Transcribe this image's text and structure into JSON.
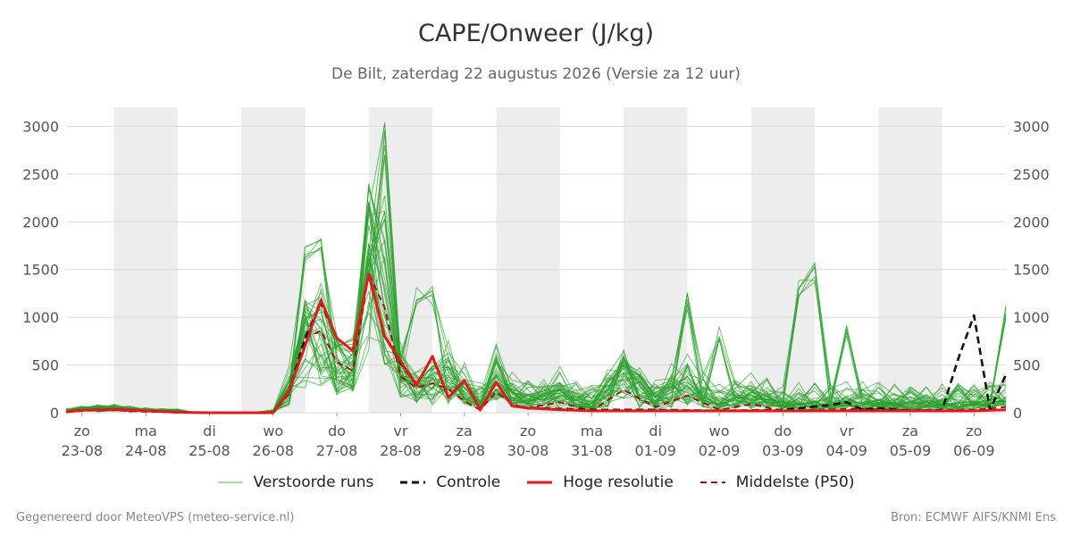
{
  "header": {
    "title": "CAPE/Onweer (J/kg)",
    "subtitle": "De Bilt, zaterdag 22 augustus 2026 (Versie za 12 uur)"
  },
  "footer": {
    "left": "Gegenereerd door MeteoVPS (meteo-service.nl)",
    "right": "Bron: ECMWF AIFS/KNMI Ens"
  },
  "legend": [
    {
      "label": "Verstoorde runs",
      "color": "#2ca02c",
      "style": "thin-solid"
    },
    {
      "label": "Controle",
      "color": "#111111",
      "style": "dashed"
    },
    {
      "label": "Hoge resolutie",
      "color": "#e31a1c",
      "style": "solid"
    },
    {
      "label": "Middelste (P50)",
      "color": "#a50f15",
      "style": "dashed"
    }
  ],
  "chart_data": {
    "type": "line",
    "title": "CAPE/Onweer (J/kg)",
    "y_unit": "J/kg",
    "ylim": [
      0,
      3200
    ],
    "yticks": [
      0,
      500,
      1000,
      1500,
      2000,
      2500,
      3000
    ],
    "xlim": [
      -0.25,
      14.5
    ],
    "x_unit": "days after zo 23-08 00:00",
    "xticks": [
      {
        "day": "zo",
        "date": "23-08"
      },
      {
        "day": "ma",
        "date": "24-08"
      },
      {
        "day": "di",
        "date": "25-08"
      },
      {
        "day": "wo",
        "date": "26-08"
      },
      {
        "day": "do",
        "date": "27-08"
      },
      {
        "day": "vr",
        "date": "28-08"
      },
      {
        "day": "za",
        "date": "29-08"
      },
      {
        "day": "zo",
        "date": "30-08"
      },
      {
        "day": "ma",
        "date": "31-08"
      },
      {
        "day": "di",
        "date": "01-09"
      },
      {
        "day": "wo",
        "date": "02-09"
      },
      {
        "day": "do",
        "date": "03-09"
      },
      {
        "day": "vr",
        "date": "04-09"
      },
      {
        "day": "za",
        "date": "05-09"
      },
      {
        "day": "zo",
        "date": "06-09"
      }
    ],
    "shaded_days": [
      0,
      2,
      4,
      6,
      8,
      10,
      12,
      14
    ],
    "grid": true,
    "legend_position": "bottom",
    "colors": {
      "ensemble": "#2ca02c",
      "control": "#111111",
      "hres": "#e31a1c",
      "median": "#a50f15",
      "shade": "#ededed",
      "grid": "#d9d9d9"
    },
    "hres": {
      "name": "Hoge resolutie",
      "points": [
        [
          -0.25,
          10
        ],
        [
          0,
          25
        ],
        [
          0.25,
          30
        ],
        [
          0.5,
          35
        ],
        [
          0.75,
          30
        ],
        [
          1,
          20
        ],
        [
          1.5,
          5
        ],
        [
          2,
          0
        ],
        [
          3,
          0
        ],
        [
          3.25,
          230
        ],
        [
          3.5,
          700
        ],
        [
          3.75,
          1180
        ],
        [
          4,
          780
        ],
        [
          4.25,
          650
        ],
        [
          4.5,
          1450
        ],
        [
          4.75,
          800
        ],
        [
          5,
          540
        ],
        [
          5.25,
          290
        ],
        [
          5.5,
          590
        ],
        [
          5.75,
          160
        ],
        [
          6,
          340
        ],
        [
          6.25,
          30
        ],
        [
          6.5,
          320
        ],
        [
          6.75,
          70
        ],
        [
          7,
          50
        ],
        [
          7.5,
          30
        ],
        [
          8,
          20
        ],
        [
          9,
          20
        ],
        [
          10,
          20
        ],
        [
          11,
          20
        ],
        [
          12,
          20
        ],
        [
          13,
          20
        ],
        [
          14,
          20
        ],
        [
          14.5,
          30
        ]
      ]
    },
    "control": {
      "name": "Controle",
      "points": [
        [
          -0.25,
          10
        ],
        [
          0,
          25
        ],
        [
          0.5,
          30
        ],
        [
          1,
          20
        ],
        [
          1.5,
          5
        ],
        [
          2,
          0
        ],
        [
          3,
          0
        ],
        [
          3.25,
          230
        ],
        [
          3.5,
          780
        ],
        [
          3.75,
          1150
        ],
        [
          4,
          780
        ],
        [
          4.25,
          650
        ],
        [
          4.5,
          1450
        ],
        [
          4.75,
          800
        ],
        [
          5,
          520
        ],
        [
          5.25,
          290
        ],
        [
          5.5,
          590
        ],
        [
          5.75,
          160
        ],
        [
          6,
          340
        ],
        [
          6.25,
          30
        ],
        [
          6.5,
          320
        ],
        [
          6.75,
          70
        ],
        [
          7,
          50
        ],
        [
          7.5,
          40
        ],
        [
          8,
          30
        ],
        [
          9,
          30
        ],
        [
          10,
          20
        ],
        [
          11,
          30
        ],
        [
          11.75,
          80
        ],
        [
          12,
          110
        ],
        [
          12.25,
          30
        ],
        [
          12.5,
          50
        ],
        [
          13,
          20
        ],
        [
          13.5,
          30
        ],
        [
          13.75,
          560
        ],
        [
          14,
          1020
        ],
        [
          14.25,
          30
        ],
        [
          14.5,
          400
        ]
      ]
    },
    "median": {
      "name": "Middelste (P50)",
      "points": [
        [
          -0.25,
          5
        ],
        [
          0,
          20
        ],
        [
          0.5,
          25
        ],
        [
          1,
          10
        ],
        [
          2,
          0
        ],
        [
          3,
          0
        ],
        [
          3.25,
          200
        ],
        [
          3.5,
          780
        ],
        [
          3.75,
          860
        ],
        [
          4,
          530
        ],
        [
          4.25,
          440
        ],
        [
          4.5,
          1460
        ],
        [
          4.75,
          1100
        ],
        [
          5,
          380
        ],
        [
          5.25,
          260
        ],
        [
          5.5,
          310
        ],
        [
          5.75,
          250
        ],
        [
          6,
          120
        ],
        [
          6.25,
          30
        ],
        [
          6.5,
          220
        ],
        [
          6.75,
          90
        ],
        [
          7,
          50
        ],
        [
          7.5,
          110
        ],
        [
          8,
          20
        ],
        [
          8.5,
          240
        ],
        [
          9,
          60
        ],
        [
          9.5,
          180
        ],
        [
          10,
          30
        ],
        [
          10.5,
          90
        ],
        [
          11,
          20
        ],
        [
          11.5,
          30
        ],
        [
          12,
          40
        ],
        [
          13,
          30
        ],
        [
          14,
          30
        ],
        [
          14.5,
          60
        ]
      ]
    },
    "ensemble_peaks": [
      [
        4.75,
        3090
      ],
      [
        4.5,
        2540
      ],
      [
        4.75,
        2350
      ],
      [
        3.5,
        1780
      ],
      [
        3.75,
        1840
      ],
      [
        9.5,
        1260
      ],
      [
        11.5,
        1580
      ],
      [
        11.25,
        1400
      ],
      [
        14.5,
        1140
      ],
      [
        5.25,
        1330
      ],
      [
        5.5,
        1330
      ],
      [
        10,
        900
      ],
      [
        12,
        940
      ]
    ]
  }
}
